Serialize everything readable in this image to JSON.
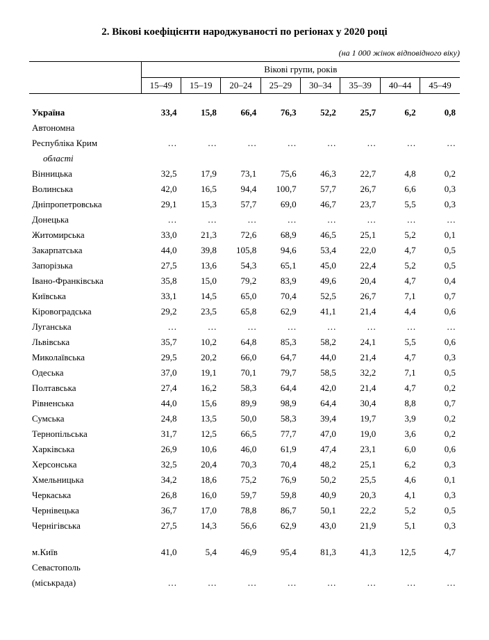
{
  "title": "2. Вікові коефіцієнти народжуваності по регіонах у 2020 році",
  "subtitle": "(на 1 000 жінок відповідного віку)",
  "table": {
    "group_header": "Вікові групи, років",
    "columns": [
      "15–49",
      "15–19",
      "20–24",
      "25–29",
      "30–34",
      "35–39",
      "40–44",
      "45–49"
    ],
    "rows": [
      {
        "label": "Україна",
        "bold": true,
        "values": [
          "33,4",
          "15,8",
          "66,4",
          "76,3",
          "52,2",
          "25,7",
          "6,2",
          "0,8"
        ]
      },
      {
        "label": "Автономна",
        "cont": "Республіка Крим",
        "values": [
          "…",
          "…",
          "…",
          "…",
          "…",
          "…",
          "…",
          "…"
        ]
      },
      {
        "label": "області",
        "sub": true,
        "values": null
      },
      {
        "label": "Вінницька",
        "values": [
          "32,5",
          "17,9",
          "73,1",
          "75,6",
          "46,3",
          "22,7",
          "4,8",
          "0,2"
        ]
      },
      {
        "label": "Волинська",
        "values": [
          "42,0",
          "16,5",
          "94,4",
          "100,7",
          "57,7",
          "26,7",
          "6,6",
          "0,3"
        ]
      },
      {
        "label": "Дніпропетровська",
        "values": [
          "29,1",
          "15,3",
          "57,7",
          "69,0",
          "46,7",
          "23,7",
          "5,5",
          "0,3"
        ]
      },
      {
        "label": "Донецька",
        "values": [
          "…",
          "…",
          "…",
          "…",
          "…",
          "…",
          "…",
          "…"
        ]
      },
      {
        "label": "Житомирська",
        "values": [
          "33,0",
          "21,3",
          "72,6",
          "68,9",
          "46,5",
          "25,1",
          "5,2",
          "0,1"
        ]
      },
      {
        "label": "Закарпатська",
        "values": [
          "44,0",
          "39,8",
          "105,8",
          "94,6",
          "53,4",
          "22,0",
          "4,7",
          "0,5"
        ]
      },
      {
        "label": "Запорізька",
        "values": [
          "27,5",
          "13,6",
          "54,3",
          "65,1",
          "45,0",
          "22,4",
          "5,2",
          "0,5"
        ]
      },
      {
        "label": "Івано-Франківська",
        "values": [
          "35,8",
          "15,0",
          "79,2",
          "83,9",
          "49,6",
          "20,4",
          "4,7",
          "0,4"
        ]
      },
      {
        "label": "Київська",
        "values": [
          "33,1",
          "14,5",
          "65,0",
          "70,4",
          "52,5",
          "26,7",
          "7,1",
          "0,7"
        ]
      },
      {
        "label": "Кіровоградська",
        "values": [
          "29,2",
          "23,5",
          "65,8",
          "62,9",
          "41,1",
          "21,4",
          "4,4",
          "0,6"
        ]
      },
      {
        "label": "Луганська",
        "values": [
          "…",
          "…",
          "…",
          "…",
          "…",
          "…",
          "…",
          "…"
        ]
      },
      {
        "label": "Львівська",
        "values": [
          "35,7",
          "10,2",
          "64,8",
          "85,3",
          "58,2",
          "24,1",
          "5,5",
          "0,6"
        ]
      },
      {
        "label": "Миколаївська",
        "values": [
          "29,5",
          "20,2",
          "66,0",
          "64,7",
          "44,0",
          "21,4",
          "4,7",
          "0,3"
        ]
      },
      {
        "label": "Одеська",
        "values": [
          "37,0",
          "19,1",
          "70,1",
          "79,7",
          "58,5",
          "32,2",
          "7,1",
          "0,5"
        ]
      },
      {
        "label": "Полтавська",
        "values": [
          "27,4",
          "16,2",
          "58,3",
          "64,4",
          "42,0",
          "21,4",
          "4,7",
          "0,2"
        ]
      },
      {
        "label": "Рівненська",
        "values": [
          "44,0",
          "15,6",
          "89,9",
          "98,9",
          "64,4",
          "30,4",
          "8,8",
          "0,7"
        ]
      },
      {
        "label": "Сумська",
        "values": [
          "24,8",
          "13,5",
          "50,0",
          "58,3",
          "39,4",
          "19,7",
          "3,9",
          "0,2"
        ]
      },
      {
        "label": "Тернопільська",
        "values": [
          "31,7",
          "12,5",
          "66,5",
          "77,7",
          "47,0",
          "19,0",
          "3,6",
          "0,2"
        ]
      },
      {
        "label": "Харківська",
        "values": [
          "26,9",
          "10,6",
          "46,0",
          "61,9",
          "47,4",
          "23,1",
          "6,0",
          "0,6"
        ]
      },
      {
        "label": "Херсонська",
        "values": [
          "32,5",
          "20,4",
          "70,3",
          "70,4",
          "48,2",
          "25,1",
          "6,2",
          "0,3"
        ]
      },
      {
        "label": "Хмельницька",
        "values": [
          "34,2",
          "18,6",
          "75,2",
          "76,9",
          "50,2",
          "25,5",
          "4,6",
          "0,1"
        ]
      },
      {
        "label": "Черкаська",
        "values": [
          "26,8",
          "16,0",
          "59,7",
          "59,8",
          "40,9",
          "20,3",
          "4,1",
          "0,3"
        ]
      },
      {
        "label": "Чернівецька",
        "values": [
          "36,7",
          "17,0",
          "78,8",
          "86,7",
          "50,1",
          "22,2",
          "5,2",
          "0,5"
        ]
      },
      {
        "label": "Чернігівська",
        "values": [
          "27,5",
          "14,3",
          "56,6",
          "62,9",
          "43,0",
          "21,9",
          "5,1",
          "0,3"
        ]
      },
      {
        "spacer": true
      },
      {
        "label": "м.Київ",
        "values": [
          "41,0",
          "5,4",
          "46,9",
          "95,4",
          "81,3",
          "41,3",
          "12,5",
          "4,7"
        ]
      },
      {
        "label": "Севастополь",
        "cont": "(міськрада)",
        "values": [
          "…",
          "…",
          "…",
          "…",
          "…",
          "…",
          "…",
          "…"
        ]
      }
    ]
  }
}
